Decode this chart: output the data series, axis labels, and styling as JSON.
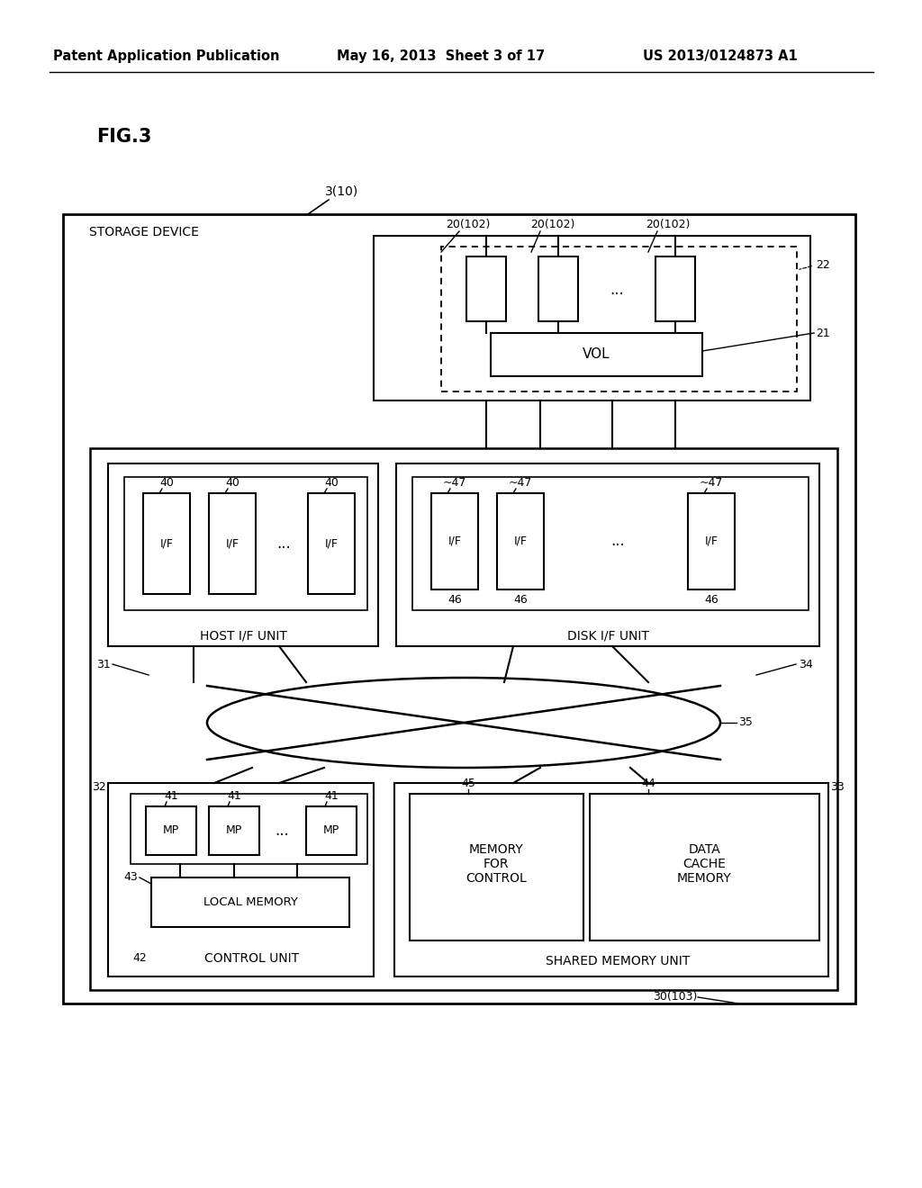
{
  "header_left": "Patent Application Publication",
  "header_mid": "May 16, 2013  Sheet 3 of 17",
  "header_right": "US 2013/0124873 A1",
  "fig_label": "FIG.3",
  "bg_color": "#ffffff",
  "line_color": "#000000"
}
